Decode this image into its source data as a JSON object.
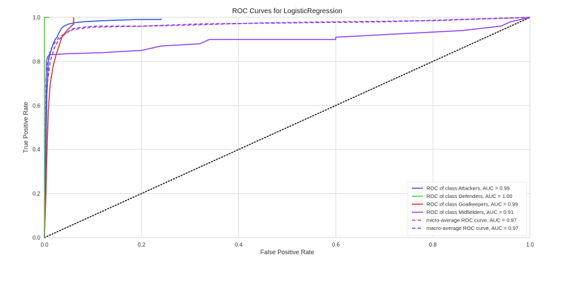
{
  "chart_data": {
    "type": "line",
    "title": "ROC Curves for LogisticRegression",
    "xlabel": "False Positive Rate",
    "ylabel": "True Positive Rate",
    "xlim": [
      0.0,
      1.0
    ],
    "ylim": [
      0.0,
      1.0
    ],
    "xticks": [
      "0.0",
      "0.2",
      "0.4",
      "0.6",
      "0.8",
      "1.0"
    ],
    "yticks": [
      "0.0",
      "0.2",
      "0.4",
      "0.6",
      "0.8",
      "1.0"
    ],
    "grid": true,
    "legend_position": "lower-right",
    "series": [
      {
        "name": "ROC of class Attackers, AUC = 0.99",
        "color": "#2b5be0",
        "dash": "solid",
        "x": [
          0.0,
          0.003,
          0.005,
          0.006,
          0.007,
          0.008,
          0.01,
          0.012,
          0.015,
          0.018,
          0.022,
          0.026,
          0.03,
          0.035,
          0.04,
          0.05,
          0.06,
          0.08,
          0.12,
          0.19,
          0.24,
          0.24
        ],
        "y": [
          0.0,
          0.4,
          0.65,
          0.7,
          0.75,
          0.8,
          0.82,
          0.84,
          0.86,
          0.88,
          0.9,
          0.91,
          0.93,
          0.95,
          0.96,
          0.97,
          0.975,
          0.98,
          0.985,
          0.99,
          0.99,
          0.995
        ]
      },
      {
        "name": "ROC of class Defenders, AUC = 1.00",
        "color": "#4cd137",
        "dash": "solid",
        "x": [
          0.0,
          0.0,
          0.01
        ],
        "y": [
          0.0,
          1.0,
          1.0
        ]
      },
      {
        "name": "ROC of class Goalkeepers, AUC = 0.99",
        "color": "#d63031",
        "dash": "solid",
        "x": [
          0.0,
          0.003,
          0.005,
          0.008,
          0.012,
          0.018,
          0.024,
          0.03,
          0.036,
          0.046,
          0.055,
          0.06,
          0.06
        ],
        "y": [
          0.0,
          0.2,
          0.38,
          0.58,
          0.7,
          0.78,
          0.83,
          0.87,
          0.91,
          0.94,
          0.96,
          0.97,
          1.0
        ]
      },
      {
        "name": "ROC of class Midfielders, AUC = 0.91",
        "color": "#8e44ec",
        "dash": "solid",
        "x": [
          0.0,
          0.004,
          0.006,
          0.01,
          0.05,
          0.12,
          0.2,
          0.24,
          0.32,
          0.34,
          0.6,
          0.6,
          0.86,
          0.94,
          0.96,
          1.0
        ],
        "y": [
          0.0,
          0.8,
          0.82,
          0.83,
          0.835,
          0.84,
          0.85,
          0.87,
          0.88,
          0.9,
          0.9,
          0.91,
          0.94,
          0.96,
          0.98,
          1.0
        ]
      },
      {
        "name": "micro-average ROC curve, AUC = 0.97",
        "color": "#b04ddb",
        "dash": "dashed",
        "x": [
          0.0,
          0.003,
          0.007,
          0.012,
          0.02,
          0.03,
          0.045,
          0.06,
          0.1,
          0.2,
          0.3,
          0.45,
          0.6,
          0.8,
          1.0
        ],
        "y": [
          0.0,
          0.72,
          0.8,
          0.85,
          0.88,
          0.91,
          0.93,
          0.945,
          0.955,
          0.96,
          0.965,
          0.975,
          0.98,
          0.985,
          1.0
        ]
      },
      {
        "name": "macro-average ROC curve, AUC = 0.97",
        "color": "#7c3aed",
        "dash": "dashed",
        "x": [
          0.0,
          0.003,
          0.007,
          0.012,
          0.02,
          0.03,
          0.045,
          0.06,
          0.1,
          0.2,
          0.32,
          0.5,
          0.7,
          0.85,
          1.0
        ],
        "y": [
          0.0,
          0.6,
          0.72,
          0.8,
          0.86,
          0.9,
          0.93,
          0.95,
          0.96,
          0.96,
          0.97,
          0.975,
          0.98,
          0.99,
          1.0
        ]
      },
      {
        "name": "",
        "color": "#222222",
        "dash": "dotted",
        "x": [
          0.0,
          1.0
        ],
        "y": [
          0.0,
          1.0
        ]
      }
    ]
  }
}
